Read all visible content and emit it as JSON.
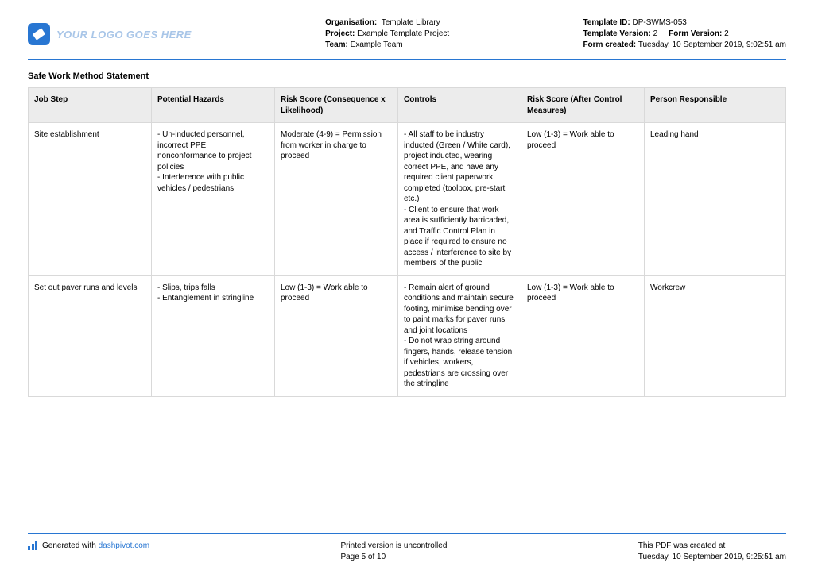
{
  "header": {
    "logo_text": "YOUR LOGO GOES HERE",
    "meta_left": {
      "org_label": "Organisation:",
      "org_value": " Template Library",
      "project_label": "Project:",
      "project_value": "Example Template Project",
      "team_label": "Team:",
      "team_value": "Example Team"
    },
    "meta_right": {
      "template_id_label": "Template ID:",
      "template_id_value": "DP-SWMS-053",
      "template_version_label": "Template Version:",
      "template_version_value": "2",
      "form_version_label": "Form Version:",
      "form_version_value": "2",
      "form_created_label": "Form created:",
      "form_created_value": "Tuesday, 10 September 2019, 9:02:51 am"
    }
  },
  "section_title": "Safe Work Method Statement",
  "table": {
    "columns": [
      "Job Step",
      "Potential Hazards",
      "Risk Score (Consequence x Likelihood)",
      "Controls",
      "Risk Score (After Control Measures)",
      "Person Responsible"
    ],
    "rows": [
      {
        "job_step": "Site establishment",
        "hazards": "- Un-inducted personnel, incorrect PPE, nonconformance to project policies\n- Interference with public vehicles / pedestrians",
        "risk1": "Moderate (4-9) = Permission from worker in charge to proceed",
        "controls": "- All staff to be industry inducted (Green / White card), project inducted, wearing correct PPE, and have any required client paperwork completed (toolbox, pre-start etc.)\n- Client to ensure that work area is sufficiently barricaded, and Traffic Control Plan in place if required to ensure no access / interference to site by members of the public",
        "risk2": "Low (1-3) = Work able to proceed",
        "person": "Leading hand"
      },
      {
        "job_step": "Set out paver runs and levels",
        "hazards": "- Slips, trips falls\n- Entanglement in stringline",
        "risk1": "Low (1-3) = Work able to proceed",
        "controls": "- Remain alert of ground conditions and maintain secure footing, minimise bending over to paint marks for paver runs and joint locations\n- Do not wrap string around fingers, hands, release tension if vehicles, workers, pedestrians are crossing over the stringline",
        "risk2": "Low (1-3) = Work able to proceed",
        "person": "Workcrew"
      }
    ]
  },
  "footer": {
    "generated_prefix": "Generated with ",
    "generated_link": "dashpivot.com",
    "uncontrolled": "Printed version is uncontrolled",
    "page": "Page 5 of 10",
    "created_at_label": "This PDF was created at",
    "created_at_value": "Tuesday, 10 September 2019, 9:25:51 am"
  },
  "colors": {
    "accent": "#2876d2",
    "header_bg": "#ececec",
    "border": "#d9d9d9"
  }
}
